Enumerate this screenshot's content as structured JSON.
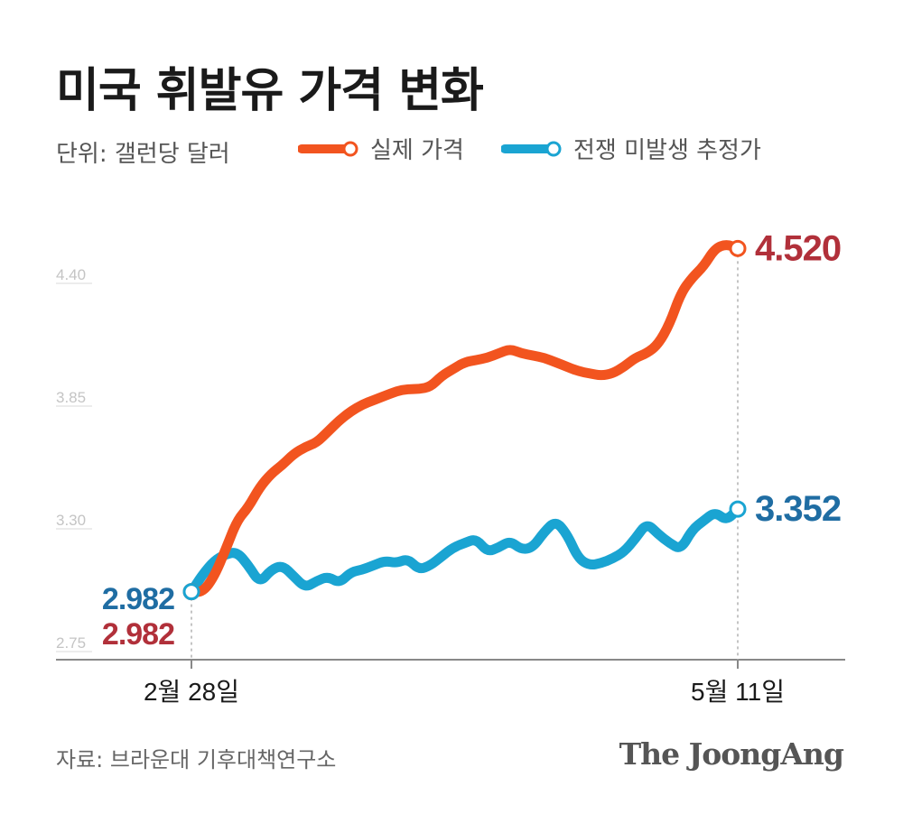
{
  "title": "미국 휘발유 가격 변화",
  "unit": "단위: 갤런당 달러",
  "legend": [
    {
      "label": "실제 가격",
      "color": "#f2541f"
    },
    {
      "label": "전쟁 미발생 추정가",
      "color": "#1aa4d2"
    }
  ],
  "source": "자료: 브라운대 기후대책연구소",
  "brand": "The JoongAng",
  "chart_data": {
    "type": "line",
    "x_start_label": "2월 28일",
    "x_end_label": "5월 11일",
    "y_ticks": [
      "4.40",
      "3.85",
      "3.30",
      "2.75"
    ],
    "ylim": [
      2.75,
      4.4
    ],
    "grid": false,
    "series": [
      {
        "name": "실제 가격",
        "color": "#f2541f",
        "label_color": "#b1303a",
        "start_value": "2.982",
        "end_value": "4.520",
        "values": [
          2.982,
          2.98,
          3.05,
          3.17,
          3.3,
          3.36,
          3.45,
          3.51,
          3.55,
          3.6,
          3.63,
          3.65,
          3.7,
          3.75,
          3.79,
          3.82,
          3.84,
          3.86,
          3.88,
          3.89,
          3.89,
          3.9,
          3.95,
          3.98,
          4.01,
          4.02,
          4.03,
          4.05,
          4.07,
          4.05,
          4.04,
          4.03,
          4.01,
          3.99,
          3.97,
          3.96,
          3.95,
          3.96,
          3.99,
          4.03,
          4.05,
          4.09,
          4.18,
          4.32,
          4.39,
          4.44,
          4.52,
          4.54,
          4.52
        ]
      },
      {
        "name": "전쟁 미발생 추정가",
        "color": "#1aa4d2",
        "label_color": "#1f6da3",
        "start_value": "2.982",
        "end_value": "3.352",
        "values": [
          2.982,
          3.06,
          3.12,
          3.15,
          3.16,
          3.1,
          3.02,
          3.08,
          3.1,
          3.05,
          3.0,
          3.03,
          3.05,
          3.02,
          3.07,
          3.08,
          3.1,
          3.12,
          3.11,
          3.13,
          3.08,
          3.1,
          3.14,
          3.18,
          3.2,
          3.22,
          3.16,
          3.18,
          3.21,
          3.17,
          3.18,
          3.25,
          3.3,
          3.24,
          3.13,
          3.1,
          3.11,
          3.13,
          3.16,
          3.22,
          3.29,
          3.24,
          3.2,
          3.17,
          3.26,
          3.3,
          3.34,
          3.3,
          3.352
        ]
      }
    ]
  }
}
